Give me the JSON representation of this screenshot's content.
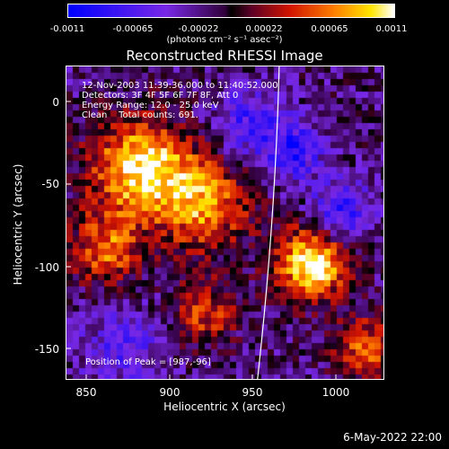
{
  "colorbar": {
    "ticks": [
      "-0.0011",
      "-0.00065",
      "-0.00022",
      "0.00022",
      "0.00065",
      "0.0011"
    ],
    "units": "(photons cm⁻² s⁻¹ asec⁻²)"
  },
  "title": "Reconstructed RHESSI Image",
  "info": {
    "line1": "12-Nov-2003 11:39:36.000 to 11:40:52.000",
    "line2": "Detectors: 3F 4F 5F 6F 7F 8F, Att 0",
    "line3": "Energy Range: 12.0 - 25.0 keV",
    "line4": "Clean    Total counts: 691.",
    "peak": "Position of Peak = [987,-96]"
  },
  "axes": {
    "xlabel": "Heliocentric X (arcsec)",
    "ylabel": "Heliocentric Y (arcsec)",
    "xticks": [
      "850",
      "900",
      "950",
      "1000"
    ],
    "yticks": [
      "0",
      "-50",
      "-100",
      "-150"
    ],
    "xrange": [
      838,
      1030
    ],
    "yrange": [
      -170,
      18
    ]
  },
  "timestamp": "6-May-2022 22:00",
  "colors": {
    "limb": "#ffffff",
    "background": "#000000"
  }
}
